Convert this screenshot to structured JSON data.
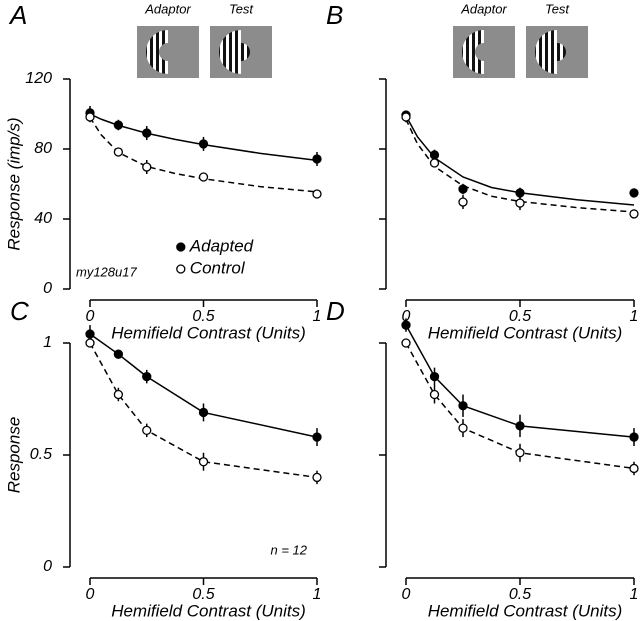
{
  "chart_data": [
    {
      "type": "line",
      "panel_label": "A",
      "stimulus_labels": [
        "Adaptor",
        "Test"
      ],
      "ylabel": "Response (imp/s)",
      "xlabel": "Hemifield Contrast (Units)",
      "annotation": "my128u17",
      "x": [
        0,
        0.125,
        0.25,
        0.5,
        1
      ],
      "xlim": [
        0,
        1
      ],
      "xticks": [
        0,
        0.5,
        1
      ],
      "ylim": [
        0,
        120
      ],
      "yticks": [
        0,
        40,
        80,
        120
      ],
      "ytick_labels": true,
      "legend": "lower right",
      "series": [
        {
          "name": "Adapted",
          "color": "#000000",
          "marker_fill": "#000000",
          "dash": false,
          "values": [
            100.6,
            93.7,
            89.1,
            82.9,
            74.3
          ],
          "errors": [
            4,
            3,
            4,
            4,
            4
          ],
          "fit_x": [
            0,
            0.05,
            0.125,
            0.25,
            0.375,
            0.5,
            0.75,
            1
          ],
          "fit_values": [
            100,
            97,
            93.5,
            89,
            85.5,
            82.5,
            77.5,
            73.5
          ]
        },
        {
          "name": "Control",
          "color": "#000000",
          "marker_fill": "#ffffff",
          "dash": true,
          "values": [
            98.3,
            78.3,
            69.7,
            64,
            54.3
          ],
          "errors": [
            3,
            2,
            4,
            2,
            2
          ],
          "fit_x": [
            0,
            0.05,
            0.125,
            0.25,
            0.375,
            0.5,
            0.75,
            1
          ],
          "fit_values": [
            98,
            88,
            78,
            70,
            66,
            63,
            58.5,
            55.5
          ]
        }
      ]
    },
    {
      "type": "line",
      "panel_label": "B",
      "stimulus_labels": [
        "Adaptor",
        "Test"
      ],
      "xlabel": "Hemifield Contrast (Units)",
      "x": [
        0,
        0.125,
        0.25,
        0.5,
        1
      ],
      "xlim": [
        0,
        1
      ],
      "xticks": [
        0,
        0.5,
        1
      ],
      "ylim": [
        0,
        120
      ],
      "yticks": [
        0,
        40,
        80,
        120
      ],
      "ytick_labels": false,
      "series": [
        {
          "color": "#000000",
          "marker_fill": "#000000",
          "dash": false,
          "values": [
            99.4,
            76.6,
            57.1,
            54.9,
            54.9
          ],
          "errors": [
            2,
            3,
            3,
            3,
            2
          ],
          "fit_x": [
            0,
            0.05,
            0.125,
            0.25,
            0.375,
            0.5,
            0.75,
            1
          ],
          "fit_values": [
            99,
            87,
            75,
            64,
            58,
            55,
            51,
            48
          ]
        },
        {
          "color": "#000000",
          "marker_fill": "#ffffff",
          "dash": true,
          "values": [
            98.3,
            72,
            49.7,
            49.1,
            42.9
          ],
          "errors": [
            3,
            2,
            4,
            4,
            2
          ],
          "fit_x": [
            0,
            0.05,
            0.125,
            0.25,
            0.375,
            0.5,
            0.75,
            1
          ],
          "fit_values": [
            97,
            83,
            70,
            59,
            53,
            50,
            46.5,
            44
          ]
        }
      ]
    },
    {
      "type": "line",
      "panel_label": "C",
      "ylabel": "Response",
      "xlabel": "Hemifield Contrast (Units)",
      "annotation": "n = 12",
      "x": [
        0,
        0.125,
        0.25,
        0.5,
        1
      ],
      "xlim": [
        0,
        1
      ],
      "xticks": [
        0,
        0.5,
        1
      ],
      "ylim": [
        0,
        1
      ],
      "yticks": [
        0,
        0.5,
        1
      ],
      "ytick_labels": true,
      "series": [
        {
          "color": "#000000",
          "marker_fill": "#000000",
          "dash": false,
          "values": [
            1.04,
            0.95,
            0.85,
            0.69,
            0.58
          ],
          "errors": [
            0.04,
            0.02,
            0.03,
            0.04,
            0.04
          ]
        },
        {
          "color": "#000000",
          "marker_fill": "#ffffff",
          "dash": true,
          "values": [
            1.0,
            0.77,
            0.61,
            0.47,
            0.4
          ],
          "errors": [
            0.02,
            0.03,
            0.03,
            0.04,
            0.03
          ]
        }
      ]
    },
    {
      "type": "line",
      "panel_label": "D",
      "xlabel": "Hemifield Contrast (Units)",
      "x": [
        0,
        0.125,
        0.25,
        0.5,
        1
      ],
      "xlim": [
        0,
        1
      ],
      "xticks": [
        0,
        0.5,
        1
      ],
      "ylim": [
        0,
        1
      ],
      "yticks": [
        0,
        0.5,
        1
      ],
      "ytick_labels": false,
      "series": [
        {
          "color": "#000000",
          "marker_fill": "#000000",
          "dash": false,
          "values": [
            1.08,
            0.85,
            0.72,
            0.63,
            0.58
          ],
          "errors": [
            0.03,
            0.04,
            0.05,
            0.05,
            0.04
          ]
        },
        {
          "color": "#000000",
          "marker_fill": "#ffffff",
          "dash": true,
          "values": [
            1.0,
            0.77,
            0.62,
            0.51,
            0.44
          ],
          "errors": [
            0.02,
            0.04,
            0.04,
            0.04,
            0.03
          ]
        }
      ]
    }
  ]
}
